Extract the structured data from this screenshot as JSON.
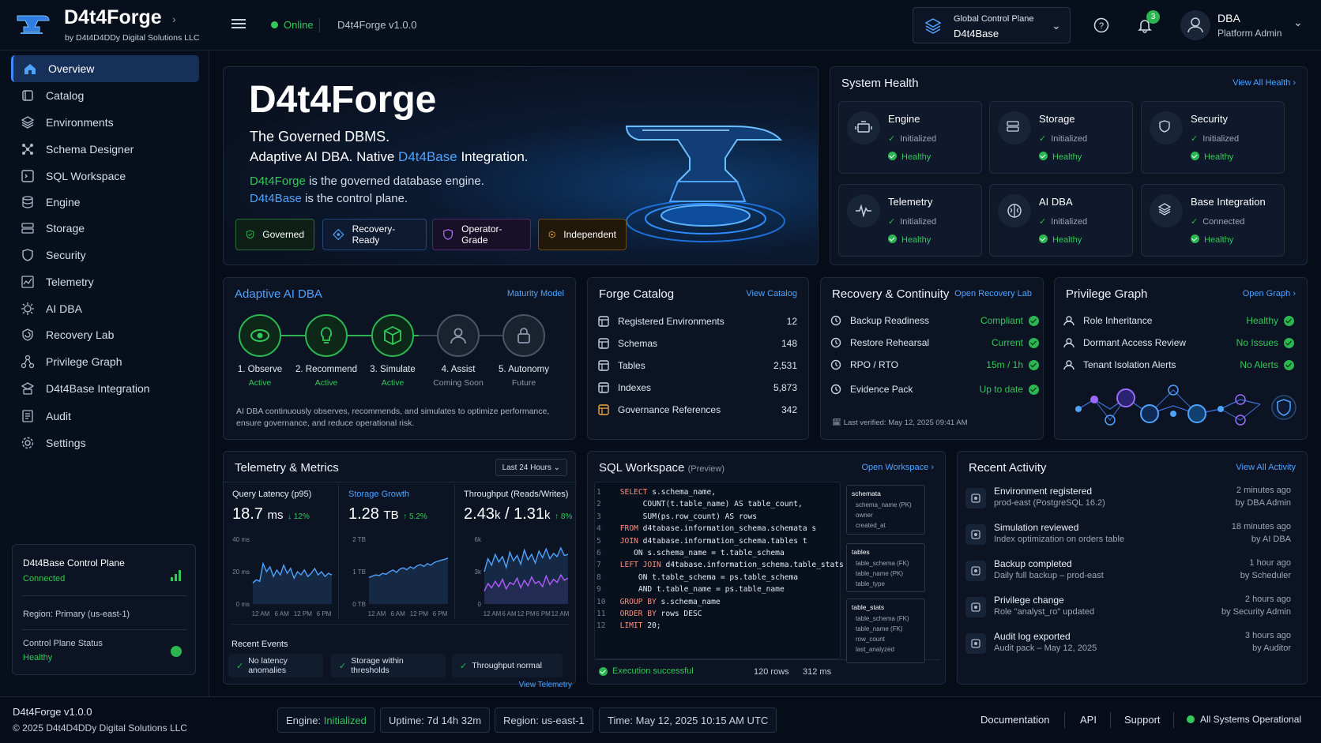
{
  "app": {
    "name": "D4t4Forge",
    "byline": "by D4t4D4DDy Digital Solutions LLC",
    "status": "Online",
    "version": "D4t4Forge v1.0.0"
  },
  "control_plane": {
    "label": "Global Control Plane",
    "value": "D4t4Base"
  },
  "notifications": {
    "count": "3"
  },
  "user": {
    "name": "DBA",
    "role": "Platform Admin"
  },
  "sidebar": {
    "items": [
      {
        "label": "Overview",
        "icon": "home-icon",
        "active": true
      },
      {
        "label": "Catalog",
        "icon": "catalog-icon"
      },
      {
        "label": "Environments",
        "icon": "layers-icon"
      },
      {
        "label": "Schema Designer",
        "icon": "schema-icon"
      },
      {
        "label": "SQL Workspace",
        "icon": "terminal-icon"
      },
      {
        "label": "Engine",
        "icon": "database-icon"
      },
      {
        "label": "Storage",
        "icon": "storage-icon"
      },
      {
        "label": "Security",
        "icon": "shield-icon"
      },
      {
        "label": "Telemetry",
        "icon": "chart-icon"
      },
      {
        "label": "AI DBA",
        "icon": "ai-icon"
      },
      {
        "label": "Recovery Lab",
        "icon": "recovery-icon"
      },
      {
        "label": "Privilege Graph",
        "icon": "graph-icon"
      },
      {
        "label": "D4t4Base Integration",
        "icon": "integration-icon"
      },
      {
        "label": "Audit",
        "icon": "audit-icon"
      },
      {
        "label": "Settings",
        "icon": "gear-icon"
      }
    ]
  },
  "cp_card": {
    "title": "D4t4Base Control Plane",
    "status": "Connected",
    "region": "Region: Primary (us-east-1)",
    "status_label": "Control Plane Status",
    "status_value": "Healthy"
  },
  "hero": {
    "title": "D4t4Forge",
    "subtitle": "The Governed DBMS.",
    "line2_pre": "Adaptive AI DBA. Native ",
    "line2_hl": "D4t4Base",
    "line2_post": " Integration.",
    "line3_hl": "D4t4Forge",
    "line3_post": " is the governed database engine.",
    "line4_hl": "D4t4Base",
    "line4_post": " is the control plane.",
    "badges": [
      "Governed",
      "Recovery-Ready",
      "Operator-Grade",
      "Independent"
    ]
  },
  "health": {
    "title": "System Health",
    "link": "View All Health",
    "cards": [
      {
        "name": "Engine",
        "s1": "Initialized",
        "s2": "Healthy",
        "icon": "engine-icon"
      },
      {
        "name": "Storage",
        "s1": "Initialized",
        "s2": "Healthy",
        "icon": "storage-icon"
      },
      {
        "name": "Security",
        "s1": "Initialized",
        "s2": "Healthy",
        "icon": "shield-icon"
      },
      {
        "name": "Telemetry",
        "s1": "Initialized",
        "s2": "Healthy",
        "icon": "pulse-icon"
      },
      {
        "name": "AI DBA",
        "s1": "Initialized",
        "s2": "Healthy",
        "icon": "brain-icon"
      },
      {
        "name": "Base Integration",
        "s1": "Connected",
        "s2": "Healthy",
        "icon": "layers-icon"
      }
    ]
  },
  "ai_dba": {
    "title": "Adaptive AI DBA",
    "link": "Maturity Model",
    "steps": [
      {
        "label": "1. Observe",
        "status": "Active"
      },
      {
        "label": "2. Recommend",
        "status": "Active"
      },
      {
        "label": "3. Simulate",
        "status": "Active"
      },
      {
        "label": "4. Assist",
        "status": "Coming Soon"
      },
      {
        "label": "5. Autonomy",
        "status": "Future"
      }
    ],
    "desc": "AI DBA continuously observes, recommends, and simulates to optimize performance, ensure governance, and reduce operational risk."
  },
  "catalog": {
    "title": "Forge Catalog",
    "link": "View Catalog",
    "rows": [
      {
        "label": "Registered Environments",
        "value": "12"
      },
      {
        "label": "Schemas",
        "value": "148"
      },
      {
        "label": "Tables",
        "value": "2,531"
      },
      {
        "label": "Indexes",
        "value": "5,873"
      },
      {
        "label": "Governance References",
        "value": "342"
      }
    ]
  },
  "recovery": {
    "title": "Recovery & Continuity",
    "link": "Open Recovery Lab",
    "rows": [
      {
        "label": "Backup Readiness",
        "value": "Compliant"
      },
      {
        "label": "Restore Rehearsal",
        "value": "Current"
      },
      {
        "label": "RPO / RTO",
        "value": "15m / 1h"
      },
      {
        "label": "Evidence Pack",
        "value": "Up to date"
      }
    ],
    "verified": "Last verified: May 12, 2025 09:41 AM"
  },
  "privilege": {
    "title": "Privilege Graph",
    "link": "Open Graph",
    "rows": [
      {
        "label": "Role Inheritance",
        "value": "Healthy"
      },
      {
        "label": "Dormant Access Review",
        "value": "No Issues"
      },
      {
        "label": "Tenant Isolation Alerts",
        "value": "No Alerts"
      }
    ]
  },
  "telemetry": {
    "title": "Telemetry & Metrics",
    "range": "Last 24 Hours",
    "link": "View Telemetry",
    "metrics": [
      {
        "label": "Query Latency (p95)",
        "value": "18.7",
        "unit": "ms",
        "delta": "↓ 12%"
      },
      {
        "label": "Storage Growth",
        "value": "1.28",
        "unit": "TB",
        "delta": "↑ 5.2%"
      },
      {
        "label": "Throughput (Reads/Writes)",
        "value": "2.43",
        "unit": "k",
        "value2": "1.31",
        "unit2": "k",
        "sep": " / ",
        "delta": "↑ 8%"
      }
    ],
    "events_title": "Recent Events",
    "events": [
      "No latency anomalies",
      "Storage within thresholds",
      "Throughput normal"
    ]
  },
  "chart_data": [
    {
      "type": "line",
      "title": "Query Latency (p95)",
      "x_ticks": [
        "12 AM",
        "6 AM",
        "12 PM",
        "6 PM"
      ],
      "y_ticks": [
        "40 ms",
        "20 ms",
        "0 ms"
      ],
      "ylim": [
        0,
        40
      ],
      "series": [
        {
          "values": [
            13,
            15,
            14,
            25,
            20,
            23,
            17,
            21,
            18,
            24,
            19,
            22,
            16,
            20,
            18,
            21,
            17,
            19,
            22,
            18,
            20,
            17,
            19,
            18
          ]
        }
      ]
    },
    {
      "type": "line",
      "title": "Storage Growth",
      "x_ticks": [
        "12 AM",
        "6 AM",
        "12 PM",
        "6 PM"
      ],
      "y_ticks": [
        "2 TB",
        "1 TB",
        "0 TB"
      ],
      "ylim": [
        0,
        2
      ],
      "series": [
        {
          "values": [
            0.82,
            0.86,
            0.9,
            0.88,
            0.95,
            0.92,
            1.0,
            1.05,
            0.98,
            1.08,
            1.12,
            1.06,
            1.15,
            1.1,
            1.18,
            1.22,
            1.16,
            1.25,
            1.2,
            1.28,
            1.32,
            1.35,
            1.38,
            1.42
          ]
        }
      ]
    },
    {
      "type": "line",
      "title": "Throughput (Reads/Writes)",
      "x_ticks": [
        "12 AM",
        "6 AM",
        "12 PM",
        "6 PM",
        "12 AM"
      ],
      "y_ticks": [
        "6k",
        "3k",
        "0"
      ],
      "ylim": [
        0,
        6
      ],
      "series": [
        {
          "values": [
            3.0,
            4.2,
            3.6,
            4.6,
            3.9,
            4.4,
            3.4,
            4.8,
            4.0,
            4.5,
            3.7,
            5.0,
            4.1,
            4.6,
            3.8,
            4.9,
            4.3,
            5.1,
            4.2,
            4.7,
            4.4,
            5.2,
            4.5,
            4.6
          ]
        },
        {
          "values": [
            1.2,
            1.9,
            1.5,
            2.1,
            1.6,
            2.3,
            1.4,
            2.0,
            1.8,
            2.4,
            1.5,
            2.2,
            1.7,
            2.5,
            1.9,
            2.1,
            1.6,
            2.6,
            1.8,
            2.3,
            2.0,
            2.7,
            2.2,
            2.4
          ]
        }
      ]
    }
  ],
  "sql": {
    "title": "SQL Workspace",
    "preview": "(Preview)",
    "link": "Open Workspace",
    "status": "Execution successful",
    "rows": "120 rows",
    "time": "312 ms",
    "lines": [
      {
        "n": "1",
        "k": "SELECT",
        "t": " s.schema_name,"
      },
      {
        "n": "2",
        "k": "",
        "t": "     COUNT(t.table_name) AS table_count,"
      },
      {
        "n": "3",
        "k": "",
        "t": "     SUM(ps.row_count) AS rows"
      },
      {
        "n": "4",
        "k": "FROM",
        "t": " d4tabase.information_schema.schemata s"
      },
      {
        "n": "5",
        "k": "JOIN",
        "t": " d4tabase.information_schema.tables t"
      },
      {
        "n": "6",
        "k": "",
        "t": "   ON s.schema_name = t.table_schema"
      },
      {
        "n": "7",
        "k": "LEFT JOIN",
        "t": " d4tabase.information_schema.table_stats ps"
      },
      {
        "n": "8",
        "k": "",
        "t": "    ON t.table_schema = ps.table_schema"
      },
      {
        "n": "9",
        "k": "",
        "t": "    AND t.table_name = ps.table_name"
      },
      {
        "n": "10",
        "k": "GROUP BY",
        "t": " s.schema_name"
      },
      {
        "n": "11",
        "k": "ORDER BY",
        "t": " rows DESC"
      },
      {
        "n": "12",
        "k": "LIMIT",
        "t": " 20;"
      }
    ],
    "schema": [
      {
        "name": "schemata",
        "cols": [
          "schema_name (PK)",
          "owner",
          "created_at"
        ]
      },
      {
        "name": "tables",
        "cols": [
          "table_schema (FK)",
          "table_name (PK)",
          "table_type"
        ]
      },
      {
        "name": "table_stats",
        "cols": [
          "table_schema (FK)",
          "table_name (FK)",
          "row_count",
          "last_analyzed"
        ]
      }
    ]
  },
  "activity": {
    "title": "Recent Activity",
    "link": "View All Activity",
    "items": [
      {
        "title": "Environment registered",
        "desc": "prod-east (PostgreSQL 16.2)",
        "when": "2 minutes ago",
        "by": "by DBA Admin",
        "icon": "environment-icon"
      },
      {
        "title": "Simulation reviewed",
        "desc": "Index optimization on orders table",
        "when": "18 minutes ago",
        "by": "by AI DBA",
        "icon": "simulation-icon"
      },
      {
        "title": "Backup completed",
        "desc": "Daily full backup – prod-east",
        "when": "1 hour ago",
        "by": "by Scheduler",
        "icon": "backup-icon"
      },
      {
        "title": "Privilege change",
        "desc": "Role \"analyst_ro\" updated",
        "when": "2 hours ago",
        "by": "by Security Admin",
        "icon": "user-icon"
      },
      {
        "title": "Audit log exported",
        "desc": "Audit pack – May 12, 2025",
        "when": "3 hours ago",
        "by": "by Auditor",
        "icon": "document-icon"
      }
    ]
  },
  "footer": {
    "version": "D4t4Forge v1.0.0",
    "copyright": "© 2025 D4t4D4DDy Digital Solutions LLC",
    "engine_label": "Engine:",
    "engine_value": "Initialized",
    "uptime": "Uptime: 7d 14h 32m",
    "region": "Region: us-east-1",
    "time": "Time: May 12, 2025 10:15 AM UTC",
    "links": [
      "Documentation",
      "API",
      "Support"
    ],
    "status": "All Systems Operational"
  },
  "colors": {
    "accent": "#3d8bff",
    "success": "#34c759",
    "bg": "#070d18",
    "panel": "#0c1424"
  }
}
